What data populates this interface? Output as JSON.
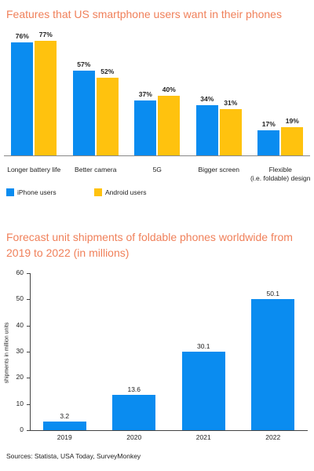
{
  "chart_data": [
    {
      "type": "bar",
      "title": "Features that US smartphone users want in their phones",
      "categories": [
        "Longer battery life",
        "Better camera",
        "5G",
        "Bigger screen",
        "Flexible\n(i.e. foldable) design"
      ],
      "series": [
        {
          "name": "iPhone users",
          "color": "#0a8cf0",
          "values": [
            76,
            57,
            37,
            34,
            17
          ],
          "value_labels": [
            "76%",
            "57%",
            "37%",
            "34%",
            "17%"
          ]
        },
        {
          "name": "Android users",
          "color": "#ffc20e",
          "values": [
            77,
            52,
            40,
            31,
            19
          ],
          "value_labels": [
            "77%",
            "52%",
            "40%",
            "31%",
            "19%"
          ]
        }
      ],
      "legend": "bottom-left"
    },
    {
      "type": "bar",
      "title": "Forecast unit shipments of foldable phones worldwide from 2019 to 2022 (in millions)",
      "y_label": "shipments in million units",
      "categories": [
        "2019",
        "2020",
        "2021",
        "2022"
      ],
      "values": [
        3.2,
        13.6,
        30.1,
        50.1
      ],
      "color": "#0a8cf0",
      "ylim": [
        0,
        60
      ],
      "yticks": [
        0,
        10,
        20,
        30,
        40,
        50,
        60
      ],
      "grid": false
    }
  ],
  "source": "Sources: Statista, USA Today, SurveyMonkey"
}
